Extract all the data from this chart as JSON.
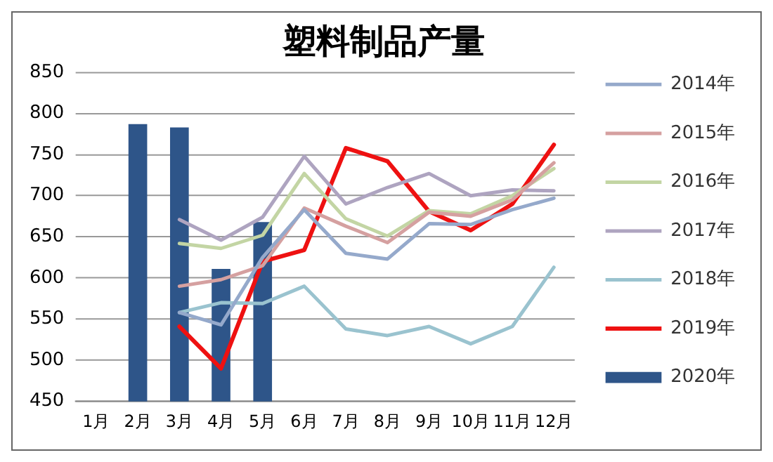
{
  "chart_data": {
    "type": "line",
    "title": "塑料制品产量",
    "categories": [
      "1月",
      "2月",
      "3月",
      "4月",
      "5月",
      "6月",
      "7月",
      "8月",
      "9月",
      "10月",
      "11月",
      "12月"
    ],
    "series": [
      {
        "name": "2020年",
        "type": "bar",
        "color": "#2e5589",
        "values": [
          null,
          787,
          783,
          611,
          668,
          null,
          null,
          null,
          null,
          null,
          null,
          null
        ]
      },
      {
        "name": "2014年",
        "color": "#95a9cb",
        "values": [
          null,
          null,
          558,
          543,
          625,
          683,
          630,
          623,
          666,
          665,
          683,
          697
        ]
      },
      {
        "name": "2015年",
        "color": "#d5a0a0",
        "values": [
          null,
          null,
          590,
          598,
          615,
          685,
          663,
          643,
          680,
          675,
          695,
          740
        ]
      },
      {
        "name": "2016年",
        "color": "#c3d5a4",
        "values": [
          null,
          null,
          642,
          636,
          652,
          727,
          672,
          651,
          682,
          678,
          700,
          733
        ]
      },
      {
        "name": "2017年",
        "color": "#aea4c0",
        "values": [
          null,
          null,
          671,
          646,
          674,
          748,
          690,
          710,
          727,
          700,
          707,
          706
        ]
      },
      {
        "name": "2018年",
        "color": "#9ac3cf",
        "values": [
          null,
          null,
          558,
          570,
          569,
          590,
          538,
          530,
          541,
          520,
          541,
          613
        ]
      },
      {
        "name": "2019年",
        "color": "#ee1111",
        "values": [
          null,
          null,
          541,
          490,
          620,
          634,
          758,
          742,
          681,
          658,
          690,
          762
        ]
      }
    ],
    "ylim": [
      450,
      850
    ],
    "yticks": [
      450,
      500,
      550,
      600,
      650,
      700,
      750,
      800,
      850
    ],
    "grid": "y",
    "legend": "right",
    "marker": "none",
    "line_style": "solid"
  }
}
